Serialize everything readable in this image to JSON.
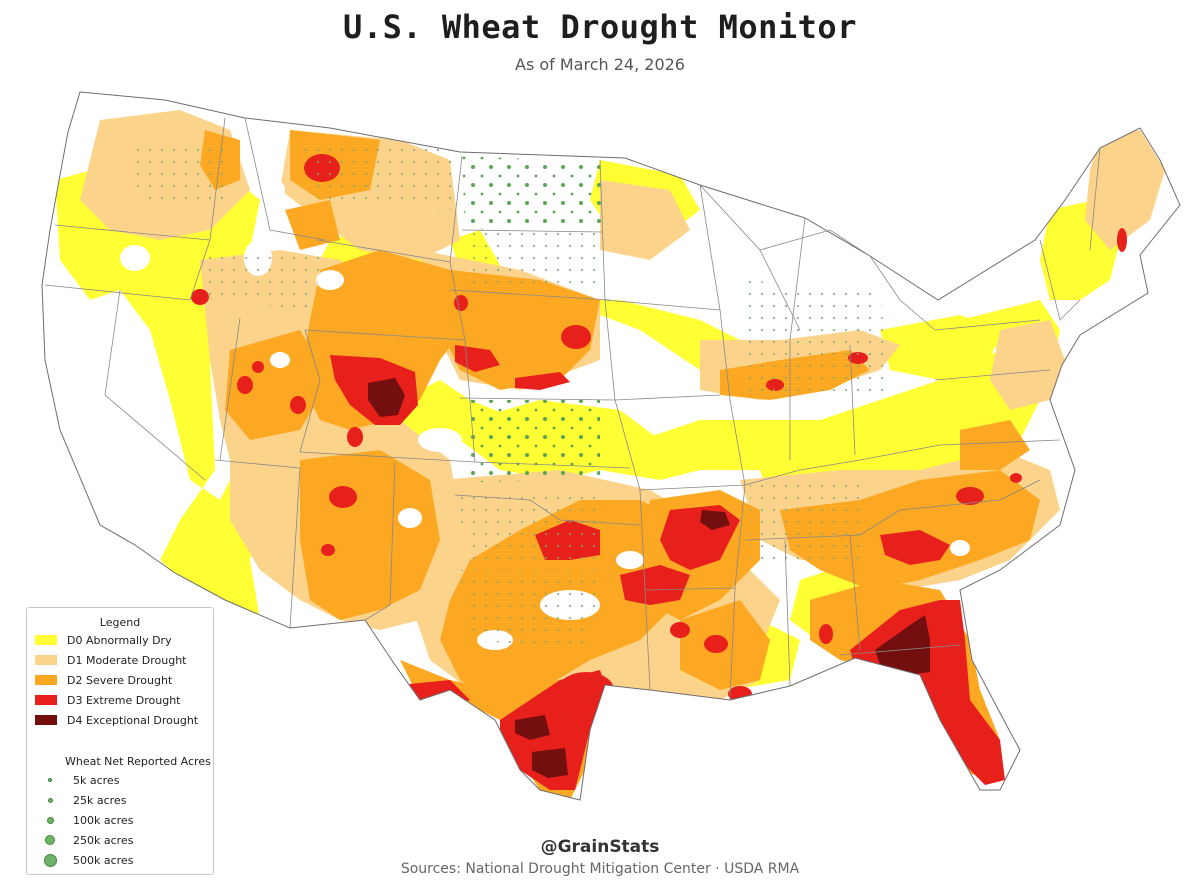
{
  "title": "U.S. Wheat Drought Monitor",
  "subtitle": "As of March 24, 2026",
  "colors": {
    "d0": "#ffff33",
    "d1": "#fcd38a",
    "d2": "#fca822",
    "d3": "#e8201c",
    "d4": "#730f0f",
    "wheat_dot": "#5aa552",
    "state_border": "#888888"
  },
  "legend": {
    "title": "Legend",
    "categories": [
      {
        "code": "D0",
        "label": "D0 Abnormally Dry",
        "color": "#ffff33"
      },
      {
        "code": "D1",
        "label": "D1 Moderate Drought",
        "color": "#fcd38a"
      },
      {
        "code": "D2",
        "label": "D2 Severe Drought",
        "color": "#fca822"
      },
      {
        "code": "D3",
        "label": "D3 Extreme Drought",
        "color": "#e8201c"
      },
      {
        "code": "D4",
        "label": "D4 Exceptional Drought",
        "color": "#730f0f"
      }
    ],
    "acres_title": "Wheat Net Reported Acres",
    "acres": [
      {
        "label": "5k acres",
        "acres": 5000
      },
      {
        "label": "25k acres",
        "acres": 25000
      },
      {
        "label": "100k acres",
        "acres": 100000
      },
      {
        "label": "250k acres",
        "acres": 250000
      },
      {
        "label": "500k acres",
        "acres": 500000
      }
    ]
  },
  "footer": {
    "handle": "@GrainStats",
    "sources": "Sources: National Drought Mitigation Center  ·  USDA RMA"
  }
}
